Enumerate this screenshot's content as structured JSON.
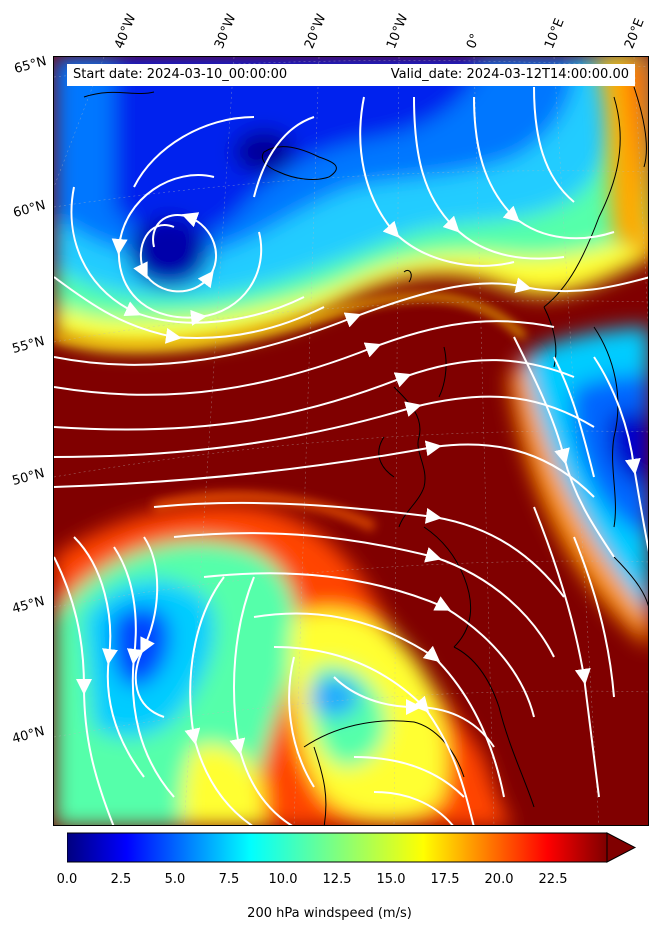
{
  "header": {
    "start_date": "Start date: 2024-03-10_00:00:00",
    "valid_date": "Valid_date: 2024-03-12T14:00:00.00"
  },
  "axes": {
    "lon_labels": [
      "40°W",
      "30°W",
      "20°W",
      "10°W",
      "0°",
      "10°E",
      "20°E"
    ],
    "lat_labels": [
      "65°N",
      "60°N",
      "55°N",
      "50°N",
      "45°N",
      "40°N"
    ]
  },
  "colorbar": {
    "label": "200 hPa windspeed (m/s)",
    "ticks": [
      "0.0",
      "2.5",
      "5.0",
      "7.5",
      "10.0",
      "12.5",
      "15.0",
      "17.5",
      "20.0",
      "22.5"
    ],
    "range": [
      0,
      25
    ],
    "colormap": "jet"
  },
  "colors": {
    "streamline": "#ffffff",
    "coastline": "#000000",
    "max_color": "#800000"
  }
}
